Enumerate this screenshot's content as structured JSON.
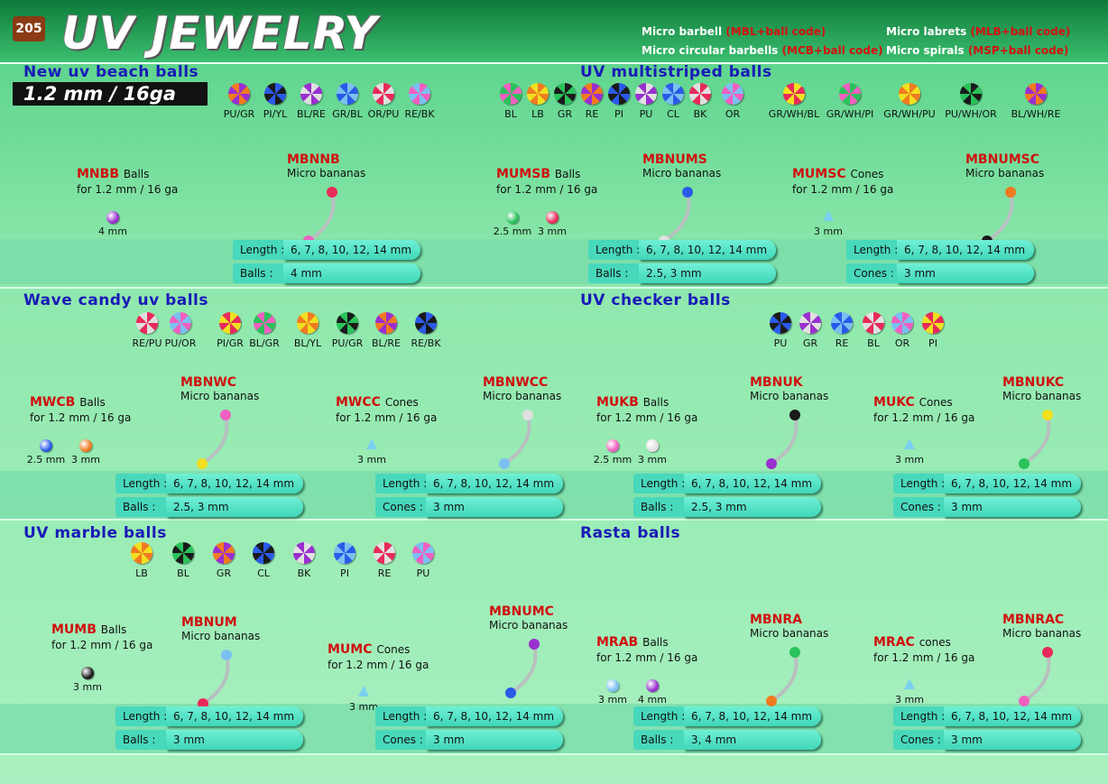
{
  "header": {
    "page_number": "205",
    "title": "UV JEWELRY",
    "codes": [
      {
        "label": "Micro barbell",
        "code": "(MBL+ball code)"
      },
      {
        "label": "Micro circular barbells",
        "code": "(MCB+ball code)"
      },
      {
        "label": "Micro labrets",
        "code": "(MLB+ball code)"
      },
      {
        "label": "Micro spirals",
        "code": "(MSP+ball code)"
      }
    ]
  },
  "sections": [
    {
      "title": "New uv beach balls",
      "badge": "1.2 mm / 16ga",
      "colors": [
        "PU/GR",
        "PI/YL",
        "BL/RE",
        "GR/BL",
        "OR/PU",
        "RE/BK"
      ]
    },
    {
      "title": "UV multistriped balls",
      "colors": [
        "BL",
        "LB",
        "GR",
        "RE",
        "PI",
        "PU",
        "CL",
        "BK",
        "OR",
        "GR/WH/BL",
        "GR/WH/PI",
        "GR/WH/PU",
        "PU/WH/OR",
        "BL/WH/RE"
      ]
    },
    {
      "title": "Wave candy uv balls",
      "colors": [
        "RE/PU",
        "PU/OR",
        "PI/GR",
        "BL/GR",
        "BL/YL",
        "PU/GR",
        "BL/RE",
        "RE/BK"
      ]
    },
    {
      "title": "UV checker balls",
      "colors": [
        "PU",
        "GR",
        "RE",
        "BL",
        "OR",
        "PI"
      ]
    },
    {
      "title": "UV marble balls",
      "colors": [
        "LB",
        "BL",
        "GR",
        "CL",
        "BK",
        "PI",
        "RE",
        "PU"
      ]
    },
    {
      "title": "Rasta balls"
    }
  ],
  "products": [
    {
      "code": "MNBB",
      "kind": "Balls",
      "spec": "for 1.2 mm / 16 ga",
      "sizes": [
        "4 mm"
      ],
      "banana_code": "MBNNB",
      "banana_desc": "Micro bananas",
      "table": [
        [
          "Length :",
          "6, 7, 8, 10, 12, 14 mm"
        ],
        [
          "Balls :",
          "4 mm"
        ]
      ]
    },
    {
      "code": "MUMSB",
      "kind": "Balls",
      "spec": "for 1.2 mm / 16 ga",
      "sizes": [
        "2.5 mm",
        "3 mm"
      ],
      "banana_code": "MBNUMS",
      "banana_desc": "Micro bananas",
      "table": [
        [
          "Length :",
          "6, 7, 8, 10, 12, 14 mm"
        ],
        [
          "Balls :",
          "2.5, 3 mm"
        ]
      ]
    },
    {
      "code": "MUMSC",
      "kind": "Cones",
      "spec": "for 1.2 mm / 16 ga",
      "sizes": [
        "3 mm"
      ],
      "banana_code": "MBNUMSC",
      "banana_desc": "Micro bananas",
      "table": [
        [
          "Length :",
          "6, 7, 8, 10, 12, 14 mm"
        ],
        [
          "Cones :",
          "3 mm"
        ]
      ]
    },
    {
      "code": "MWCB",
      "kind": "Balls",
      "spec": "for 1.2 mm / 16 ga",
      "sizes": [
        "2.5 mm",
        "3 mm"
      ],
      "banana_code": "MBNWC",
      "banana_desc": "Micro bananas",
      "table": [
        [
          "Length :",
          "6, 7, 8, 10, 12, 14 mm"
        ],
        [
          "Balls :",
          "2.5, 3 mm"
        ]
      ]
    },
    {
      "code": "MWCC",
      "kind": "Cones",
      "spec": "for 1.2 mm / 16 ga",
      "sizes": [
        "3 mm"
      ],
      "banana_code": "MBNWCC",
      "banana_desc": "Micro bananas",
      "table": [
        [
          "Length :",
          "6, 7, 8, 10, 12, 14 mm"
        ],
        [
          "Cones :",
          "3 mm"
        ]
      ]
    },
    {
      "code": "MUKB",
      "kind": "Balls",
      "spec": "for 1.2 mm / 16 ga",
      "sizes": [
        "2.5 mm",
        "3 mm"
      ],
      "banana_code": "MBNUK",
      "banana_desc": "Micro bananas",
      "table": [
        [
          "Length :",
          "6, 7, 8, 10, 12, 14 mm"
        ],
        [
          "Balls :",
          "2.5, 3 mm"
        ]
      ]
    },
    {
      "code": "MUKC",
      "kind": "Cones",
      "spec": "for 1.2 mm / 16 ga",
      "sizes": [
        "3 mm"
      ],
      "banana_code": "MBNUKC",
      "banana_desc": "Micro bananas",
      "table": [
        [
          "Length :",
          "6, 7, 8, 10, 12, 14 mm"
        ],
        [
          "Cones :",
          "3 mm"
        ]
      ]
    },
    {
      "code": "MUMB",
      "kind": "Balls",
      "spec": "for 1.2 mm / 16 ga",
      "sizes": [
        "3 mm"
      ],
      "banana_code": "MBNUM",
      "banana_desc": "Micro bananas",
      "table": [
        [
          "Length :",
          "6, 7, 8, 10, 12, 14 mm"
        ],
        [
          "Balls :",
          "3 mm"
        ]
      ]
    },
    {
      "code": "MUMC",
      "kind": "Cones",
      "spec": "for 1.2 mm / 16 ga",
      "sizes": [
        "3 mm"
      ],
      "banana_code": "MBNUMC",
      "banana_desc": "Micro bananas",
      "table": [
        [
          "Length :",
          "6, 7, 8, 10, 12, 14 mm"
        ],
        [
          "Cones :",
          "3 mm"
        ]
      ]
    },
    {
      "code": "MRAB",
      "kind": "Balls",
      "spec": "for 1.2 mm / 16 ga",
      "sizes": [
        "3 mm",
        "4 mm"
      ],
      "banana_code": "MBNRA",
      "banana_desc": "Micro bananas",
      "table": [
        [
          "Length :",
          "6, 7, 8, 10, 12, 14 mm"
        ],
        [
          "Balls :",
          "3, 4 mm"
        ]
      ]
    },
    {
      "code": "MRAC",
      "kind": "cones",
      "spec": "for 1.2 mm / 16 ga",
      "sizes": [
        "3 mm"
      ],
      "banana_code": "MBNRAC",
      "banana_desc": "Micro bananas",
      "table": [
        [
          "Length :",
          "6, 7, 8, 10, 12, 14 mm"
        ],
        [
          "Cones :",
          "3 mm"
        ]
      ]
    }
  ]
}
